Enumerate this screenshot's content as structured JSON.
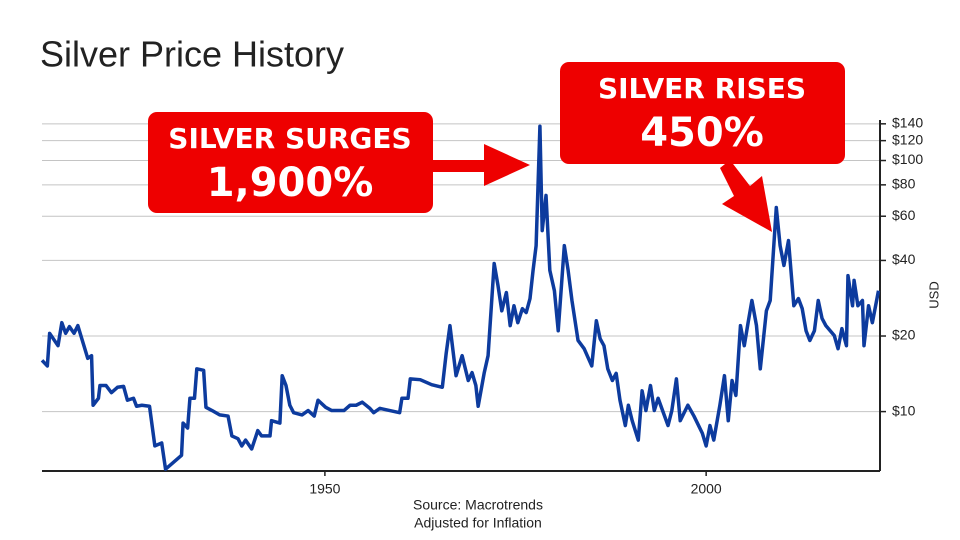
{
  "chart_data": {
    "type": "line",
    "title": "Silver Price History",
    "y_label": "USD",
    "source": [
      "Source: Macrotrends",
      "Adjusted for Inflation"
    ],
    "annotations": [
      {
        "lines": [
          "SILVER SURGES",
          "1,900%"
        ]
      },
      {
        "lines": [
          "SILVER RISES",
          "450%"
        ]
      }
    ],
    "color": "#0d3b9e",
    "yscale": "log",
    "yaxis_position": "right",
    "grid": true,
    "xlim": [
      1912.9,
      2022.8
    ],
    "xticks": [
      1950,
      2000
    ],
    "ylim": [
      5.8,
      145
    ],
    "yticks": [
      {
        "value": 10,
        "label": "$10"
      },
      {
        "value": 20,
        "label": "$20"
      },
      {
        "value": 40,
        "label": "$40"
      },
      {
        "value": 60,
        "label": "$60"
      },
      {
        "value": 80,
        "label": "$80"
      },
      {
        "value": 100,
        "label": "$100"
      },
      {
        "value": 120,
        "label": "$120"
      },
      {
        "value": 140,
        "label": "$140"
      }
    ],
    "x": [
      1912.9,
      1913.6,
      1913.9,
      1915.0,
      1915.5,
      1916.0,
      1916.5,
      1917.1,
      1917.6,
      1918.4,
      1918.9,
      1919.4,
      1919.6,
      1920.3,
      1920.5,
      1921.3,
      1922.0,
      1922.8,
      1923.6,
      1924.1,
      1924.9,
      1925.3,
      1926.0,
      1927.0,
      1927.7,
      1928.6,
      1929.1,
      1931.2,
      1931.4,
      1932.0,
      1932.3,
      1932.9,
      1933.2,
      1934.1,
      1934.4,
      1935.2,
      1936.2,
      1937.3,
      1937.8,
      1938.6,
      1939.1,
      1939.6,
      1940.4,
      1941.2,
      1941.7,
      1942.8,
      1943.0,
      1944.1,
      1944.4,
      1944.9,
      1945.4,
      1945.9,
      1947.0,
      1947.8,
      1948.6,
      1949.1,
      1950.1,
      1950.9,
      1952.5,
      1953.3,
      1954.1,
      1954.9,
      1955.9,
      1956.4,
      1957.2,
      1959.8,
      1960.1,
      1960.9,
      1961.2,
      1962.5,
      1964.0,
      1965.4,
      1965.9,
      1966.4,
      1967.2,
      1968.0,
      1968.8,
      1969.3,
      1969.8,
      1970.1,
      1970.9,
      1971.4,
      1972.2,
      1972.7,
      1973.2,
      1973.8,
      1974.3,
      1974.8,
      1975.3,
      1975.9,
      1976.4,
      1976.9,
      1977.3,
      1977.7,
      1978.2,
      1978.5,
      1979.0,
      1979.5,
      1980.1,
      1980.6,
      1981.4,
      1981.9,
      1982.4,
      1983.2,
      1984.0,
      1985.0,
      1985.6,
      1986.1,
      1986.6,
      1987.1,
      1987.7,
      1988.2,
      1988.7,
      1989.4,
      1989.8,
      1990.3,
      1991.1,
      1991.6,
      1992.1,
      1992.7,
      1993.2,
      1993.7,
      1995.0,
      1995.5,
      1996.1,
      1996.6,
      1997.6,
      1998.4,
      1999.5,
      2000.0,
      2000.5,
      2001.0,
      2001.8,
      2002.4,
      2002.9,
      2003.4,
      2003.9,
      2004.5,
      2005.0,
      2005.5,
      2006.0,
      2006.6,
      2007.1,
      2007.9,
      2008.4,
      2009.2,
      2009.7,
      2010.2,
      2010.8,
      2011.5,
      2012.1,
      2012.6,
      2013.1,
      2013.6,
      2014.2,
      2014.7,
      2015.2,
      2015.7,
      2016.8,
      2017.3,
      2017.8,
      2018.4,
      2018.6,
      2019.2,
      2019.4,
      2019.9,
      2020.5,
      2020.7,
      2021.3,
      2021.8,
      2022.6
    ],
    "values": [
      16.0,
      15.2,
      20.5,
      18.3,
      22.6,
      20.5,
      21.8,
      20.5,
      22.0,
      18.3,
      16.3,
      16.7,
      10.6,
      11.3,
      12.7,
      12.7,
      11.9,
      12.5,
      12.6,
      11.1,
      11.3,
      10.5,
      10.6,
      10.5,
      7.3,
      7.5,
      5.9,
      6.7,
      9.0,
      8.6,
      11.3,
      11.3,
      14.8,
      14.6,
      10.4,
      10.1,
      9.7,
      9.6,
      8.0,
      7.8,
      7.3,
      7.7,
      7.1,
      8.4,
      8.0,
      8.0,
      9.2,
      9.0,
      13.9,
      12.7,
      10.6,
      9.9,
      9.7,
      10.1,
      9.6,
      11.1,
      10.4,
      10.1,
      10.1,
      10.6,
      10.6,
      10.9,
      10.3,
      9.9,
      10.3,
      9.9,
      11.3,
      11.3,
      13.5,
      13.4,
      12.8,
      12.5,
      17.0,
      22.0,
      13.9,
      16.7,
      13.3,
      14.3,
      12.7,
      10.5,
      14.3,
      16.7,
      38.9,
      31.8,
      25.2,
      29.8,
      22.0,
      26.4,
      22.6,
      25.7,
      24.8,
      28.2,
      36.5,
      45.8,
      137,
      52.6,
      72.6,
      36.5,
      30.3,
      21.0,
      45.8,
      36.5,
      27.7,
      19.2,
      17.8,
      15.2,
      23.0,
      19.5,
      18.3,
      14.8,
      13.3,
      14.2,
      11.1,
      8.8,
      10.6,
      9.2,
      7.7,
      12.1,
      10.1,
      12.7,
      10.1,
      11.3,
      8.8,
      10.1,
      13.5,
      9.2,
      10.6,
      9.6,
      8.2,
      7.3,
      8.8,
      7.7,
      10.6,
      13.9,
      9.2,
      13.3,
      11.6,
      22.0,
      18.3,
      22.6,
      27.7,
      22.0,
      14.8,
      25.2,
      27.7,
      65.0,
      45.8,
      38.2,
      48.0,
      26.4,
      28.2,
      25.7,
      21.0,
      19.2,
      21.0,
      27.7,
      23.5,
      22.0,
      20.1,
      17.8,
      21.4,
      18.3,
      34.8,
      26.4,
      33.3,
      26.4,
      27.7,
      18.3,
      26.4,
      22.6,
      30.3
    ]
  }
}
